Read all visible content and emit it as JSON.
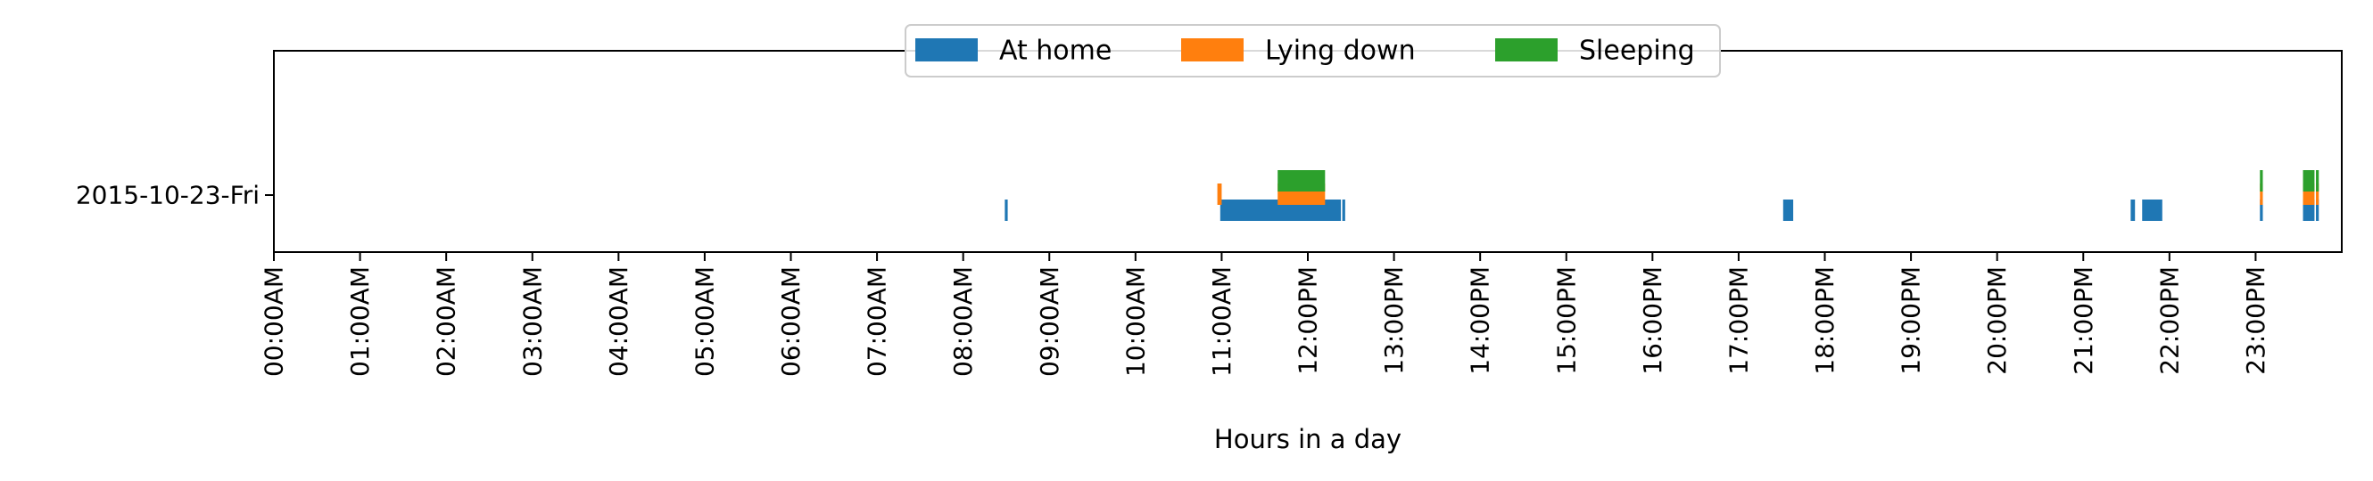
{
  "chart_data": {
    "type": "bar",
    "orientation": "horizontal-timeline",
    "title": "",
    "xlabel": "Hours in a day",
    "ylabel": "",
    "xlim": [
      0,
      24
    ],
    "x_unit": "hours",
    "grid": false,
    "legend_position": "top-center",
    "categories": [
      "2015-10-23-Fri"
    ],
    "x_tick_labels": [
      "00:00AM",
      "01:00AM",
      "02:00AM",
      "03:00AM",
      "04:00AM",
      "05:00AM",
      "06:00AM",
      "07:00AM",
      "08:00AM",
      "09:00AM",
      "10:00AM",
      "11:00AM",
      "12:00PM",
      "13:00PM",
      "14:00PM",
      "15:00PM",
      "16:00PM",
      "17:00PM",
      "18:00PM",
      "19:00PM",
      "20:00PM",
      "21:00PM",
      "22:00PM",
      "23:00PM"
    ],
    "series": [
      {
        "name": "At home",
        "color": "#1f77b4",
        "intervals": [
          {
            "start": "08:29",
            "end": "08:31"
          },
          {
            "start": "10:59",
            "end": "12:23"
          },
          {
            "start": "12:24",
            "end": "12:26"
          },
          {
            "start": "17:31",
            "end": "17:38"
          },
          {
            "start": "21:33",
            "end": "21:36"
          },
          {
            "start": "21:41",
            "end": "21:55"
          },
          {
            "start": "23:03",
            "end": "23:05"
          },
          {
            "start": "23:33",
            "end": "23:41"
          },
          {
            "start": "23:42",
            "end": "23:44"
          }
        ]
      },
      {
        "name": "Lying down",
        "color": "#ff7f0e",
        "intervals": [
          {
            "start": "10:57",
            "end": "11:00"
          },
          {
            "start": "11:39",
            "end": "12:12"
          },
          {
            "start": "23:03",
            "end": "23:05"
          },
          {
            "start": "23:33",
            "end": "23:41"
          },
          {
            "start": "23:42",
            "end": "23:44"
          }
        ]
      },
      {
        "name": "Sleeping",
        "color": "#2ca02c",
        "intervals": [
          {
            "start": "11:39",
            "end": "12:12"
          },
          {
            "start": "23:03",
            "end": "23:05"
          },
          {
            "start": "23:33",
            "end": "23:41"
          },
          {
            "start": "23:42",
            "end": "23:44"
          }
        ]
      }
    ]
  }
}
